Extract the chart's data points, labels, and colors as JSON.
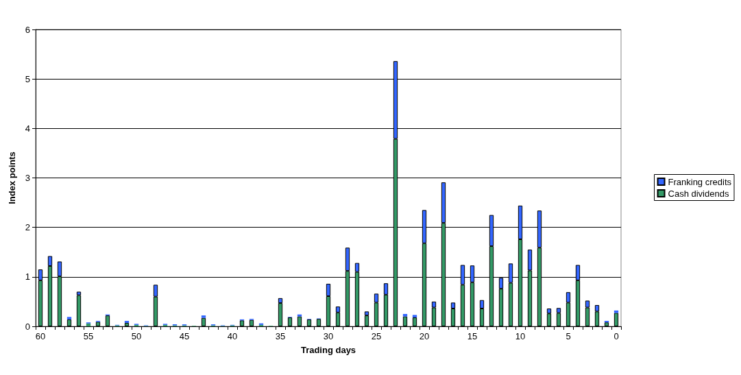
{
  "chart_data": {
    "type": "bar",
    "stacked": true,
    "xlabel": "Trading days",
    "ylabel": "Index points",
    "categories": [
      "60",
      null,
      null,
      null,
      null,
      "55",
      null,
      null,
      null,
      null,
      "50",
      null,
      null,
      null,
      null,
      "45",
      null,
      null,
      null,
      null,
      "40",
      null,
      null,
      null,
      null,
      "35",
      null,
      null,
      null,
      null,
      "30",
      null,
      null,
      null,
      null,
      "25",
      null,
      null,
      null,
      null,
      "20",
      null,
      null,
      null,
      null,
      "15",
      null,
      null,
      null,
      null,
      "10",
      null,
      null,
      null,
      null,
      "5",
      null,
      null,
      null,
      null,
      "0"
    ],
    "series": [
      {
        "name": "Cash dividends",
        "color": "#339966",
        "values": [
          0.93,
          1.22,
          1.01,
          0.14,
          0.63,
          0.06,
          0.09,
          0.22,
          0.02,
          0.07,
          0.03,
          0.01,
          0.6,
          0.03,
          0.02,
          0.02,
          0.01,
          0.17,
          0.02,
          0.01,
          0.02,
          0.12,
          0.13,
          0.03,
          0.01,
          0.47,
          0.18,
          0.2,
          0.14,
          0.15,
          0.61,
          0.28,
          1.12,
          1.1,
          0.22,
          0.48,
          0.64,
          3.79,
          0.2,
          0.18,
          1.68,
          0.38,
          2.09,
          0.36,
          0.84,
          0.89,
          0.36,
          1.62,
          0.76,
          0.88,
          1.76,
          1.13,
          1.59,
          0.26,
          0.27,
          0.48,
          0.93,
          0.38,
          0.3,
          0.08,
          0.27
        ]
      },
      {
        "name": "Franking credits",
        "color": "#3366ff",
        "values": [
          0.22,
          0.2,
          0.3,
          0.05,
          0.07,
          0.02,
          0.02,
          0.02,
          0.01,
          0.04,
          0.02,
          0.01,
          0.24,
          0.02,
          0.02,
          0.02,
          0,
          0.05,
          0.02,
          0.01,
          0.01,
          0.02,
          0.02,
          0.03,
          0,
          0.1,
          0.01,
          0.04,
          0.01,
          0.01,
          0.25,
          0.12,
          0.47,
          0.18,
          0.08,
          0.18,
          0.23,
          1.57,
          0.05,
          0.05,
          0.67,
          0.12,
          0.82,
          0.12,
          0.4,
          0.34,
          0.17,
          0.63,
          0.22,
          0.39,
          0.68,
          0.42,
          0.75,
          0.1,
          0.1,
          0.21,
          0.31,
          0.14,
          0.13,
          0.03,
          0.05
        ]
      }
    ],
    "ylim": [
      0,
      6
    ],
    "yticks": [
      0,
      1,
      2,
      3,
      4,
      5,
      6
    ],
    "grid": "y",
    "legend": "right"
  }
}
